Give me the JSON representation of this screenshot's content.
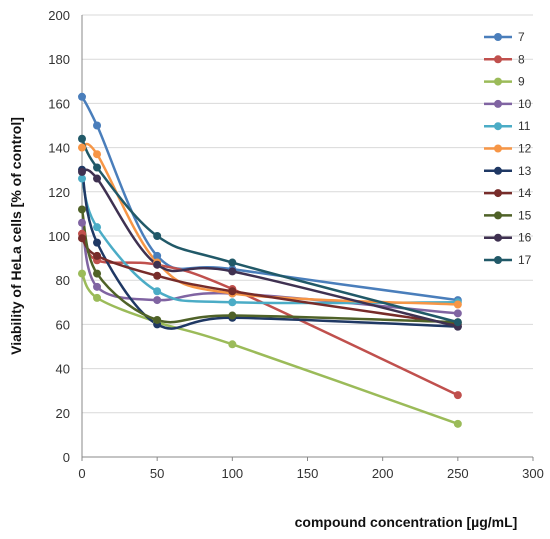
{
  "chart_data": {
    "type": "line",
    "title": "",
    "xlabel": "compound concentration [µg/mL]",
    "ylabel": "Viability of HeLa cells [% of control]",
    "xlim": [
      0,
      300
    ],
    "ylim": [
      0,
      200
    ],
    "x_ticks": [
      0,
      50,
      100,
      150,
      200,
      250,
      300
    ],
    "y_ticks": [
      0,
      20,
      40,
      60,
      80,
      100,
      120,
      140,
      160,
      180,
      200
    ],
    "grid": {
      "horizontal": true,
      "vertical": false
    },
    "legend_position": "right",
    "x": [
      0,
      10,
      50,
      100,
      250
    ],
    "series": [
      {
        "name": "7",
        "color": "#4a7ebb",
        "values": [
          163,
          150,
          91,
          85,
          71
        ]
      },
      {
        "name": "8",
        "color": "#c0504d",
        "values": [
          101,
          89,
          87,
          76,
          28
        ]
      },
      {
        "name": "9",
        "color": "#9bbb59",
        "values": [
          83,
          72,
          61,
          51,
          15
        ]
      },
      {
        "name": "10",
        "color": "#8064a2",
        "values": [
          106,
          77,
          71,
          74,
          65
        ]
      },
      {
        "name": "11",
        "color": "#4bacc6",
        "values": [
          126,
          104,
          75,
          70,
          70
        ]
      },
      {
        "name": "12",
        "color": "#f79646",
        "values": [
          140,
          137,
          88,
          74,
          69
        ]
      },
      {
        "name": "13",
        "color": "#1f3864",
        "values": [
          130,
          97,
          60,
          63,
          59
        ]
      },
      {
        "name": "14",
        "color": "#772c2a",
        "values": [
          99,
          91,
          82,
          75,
          60
        ]
      },
      {
        "name": "15",
        "color": "#4f6228",
        "values": [
          112,
          83,
          62,
          64,
          61
        ]
      },
      {
        "name": "16",
        "color": "#3f3151",
        "values": [
          129,
          126,
          87,
          84,
          59
        ]
      },
      {
        "name": "17",
        "color": "#215968",
        "values": [
          144,
          131,
          100,
          88,
          61
        ]
      }
    ]
  }
}
